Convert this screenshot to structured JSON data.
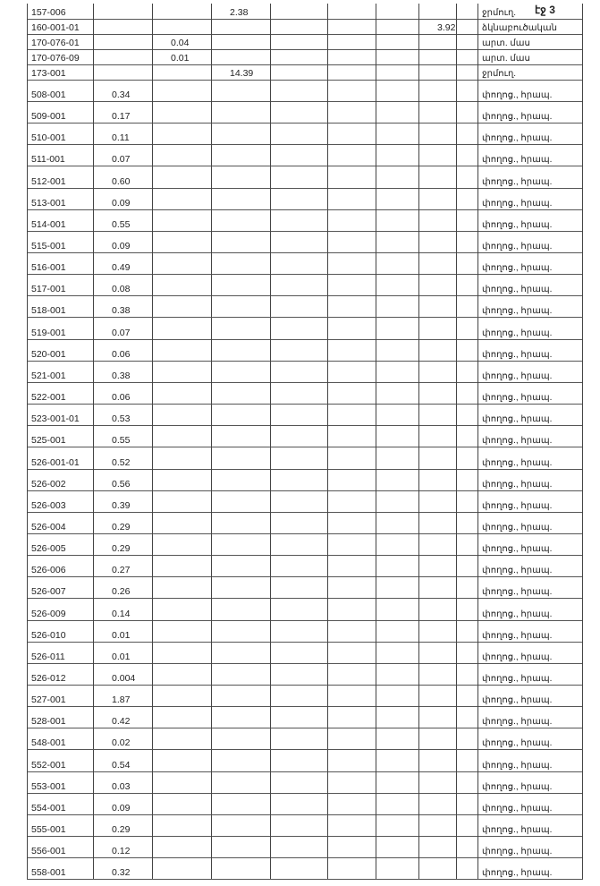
{
  "page_number": "էջ 3",
  "rows": [
    {
      "code": "157-006",
      "col": 3,
      "value": "2.38",
      "desc": "ջրմուղ."
    },
    {
      "code": "160-001-01",
      "col": 7,
      "value": "3.92",
      "desc": "ձկնաբուծական"
    },
    {
      "code": "170-076-01",
      "col": 2,
      "value": "0.04",
      "desc": "արտ. մաս"
    },
    {
      "code": "170-076-09",
      "col": 2,
      "value": "0.01",
      "desc": "արտ. մաս"
    },
    {
      "code": "173-001",
      "col": 3,
      "value": "14.39",
      "desc": "ջրմուղ."
    },
    {
      "code": "508-001",
      "col": 1,
      "value": "0.34",
      "desc": "փողոց., հրապ."
    },
    {
      "code": "509-001",
      "col": 1,
      "value": "0.17",
      "desc": "փողոց., հրապ."
    },
    {
      "code": "510-001",
      "col": 1,
      "value": "0.11",
      "desc": "փողոց., հրապ."
    },
    {
      "code": "511-001",
      "col": 1,
      "value": "0.07",
      "desc": "փողոց., հրապ."
    },
    {
      "code": "512-001",
      "col": 1,
      "value": "0.60",
      "desc": "փողոց., հրապ."
    },
    {
      "code": "513-001",
      "col": 1,
      "value": "0.09",
      "desc": "փողոց., հրապ."
    },
    {
      "code": "514-001",
      "col": 1,
      "value": "0.55",
      "desc": "փողոց., հրապ."
    },
    {
      "code": "515-001",
      "col": 1,
      "value": "0.09",
      "desc": "փողոց., հրապ."
    },
    {
      "code": "516-001",
      "col": 1,
      "value": "0.49",
      "desc": "փողոց., հրապ."
    },
    {
      "code": "517-001",
      "col": 1,
      "value": "0.08",
      "desc": "փողոց., հրապ."
    },
    {
      "code": "518-001",
      "col": 1,
      "value": "0.38",
      "desc": "փողոց., հրապ."
    },
    {
      "code": "519-001",
      "col": 1,
      "value": "0.07",
      "desc": "փողոց., հրապ."
    },
    {
      "code": "520-001",
      "col": 1,
      "value": "0.06",
      "desc": "փողոց., հրապ."
    },
    {
      "code": "521-001",
      "col": 1,
      "value": "0.38",
      "desc": "փողոց., հրապ."
    },
    {
      "code": "522-001",
      "col": 1,
      "value": "0.06",
      "desc": "փողոց., հրապ."
    },
    {
      "code": "523-001-01",
      "col": 1,
      "value": "0.53",
      "desc": "փողոց., հրապ."
    },
    {
      "code": "525-001",
      "col": 1,
      "value": "0.55",
      "desc": "փողոց., հրապ."
    },
    {
      "code": "526-001-01",
      "col": 1,
      "value": "0.52",
      "desc": "փողոց., հրապ."
    },
    {
      "code": "526-002",
      "col": 1,
      "value": "0.56",
      "desc": "փողոց., հրապ."
    },
    {
      "code": "526-003",
      "col": 1,
      "value": "0.39",
      "desc": "փողոց., հրապ."
    },
    {
      "code": "526-004",
      "col": 1,
      "value": "0.29",
      "desc": "փողոց., հրապ."
    },
    {
      "code": "526-005",
      "col": 1,
      "value": "0.29",
      "desc": "փողոց., հրապ."
    },
    {
      "code": "526-006",
      "col": 1,
      "value": "0.27",
      "desc": "փողոց., հրապ."
    },
    {
      "code": "526-007",
      "col": 1,
      "value": "0.26",
      "desc": "փողոց., հրապ."
    },
    {
      "code": "526-009",
      "col": 1,
      "value": "0.14",
      "desc": "փողոց., հրապ."
    },
    {
      "code": "526-010",
      "col": 1,
      "value": "0.01",
      "desc": "փողոց., հրապ."
    },
    {
      "code": "526-011",
      "col": 1,
      "value": "0.01",
      "desc": "փողոց., հրապ."
    },
    {
      "code": "526-012",
      "col": 1,
      "value": "0.004",
      "desc": "փողոց., հրապ."
    },
    {
      "code": "527-001",
      "col": 1,
      "value": "1.87",
      "desc": "փողոց., հրապ."
    },
    {
      "code": "528-001",
      "col": 1,
      "value": "0.42",
      "desc": "փողոց., հրապ."
    },
    {
      "code": "548-001",
      "col": 1,
      "value": "0.02",
      "desc": "փողոց., հրապ."
    },
    {
      "code": "552-001",
      "col": 1,
      "value": "0.54",
      "desc": "փողոց., հրապ."
    },
    {
      "code": "553-001",
      "col": 1,
      "value": "0.03",
      "desc": "փողոց., հրապ."
    },
    {
      "code": "554-001",
      "col": 1,
      "value": "0.09",
      "desc": "փողոց., հրապ."
    },
    {
      "code": "555-001",
      "col": 1,
      "value": "0.29",
      "desc": "փողոց., հրապ."
    },
    {
      "code": "556-001",
      "col": 1,
      "value": "0.12",
      "desc": "փողոց., հրապ."
    },
    {
      "code": "558-001",
      "col": 1,
      "value": "0.32",
      "desc": "փողոց., հրապ."
    }
  ]
}
